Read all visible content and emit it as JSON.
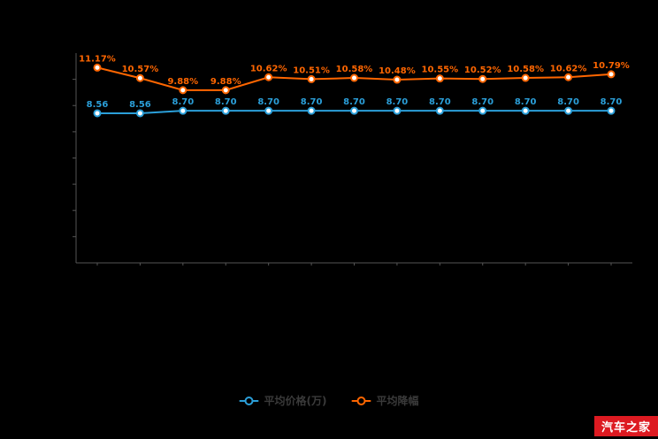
{
  "chart_data": {
    "type": "line",
    "title": "",
    "xlabel": "",
    "ylabel": "",
    "ylim": [
      0,
      12
    ],
    "grid": false,
    "legend_position": "bottom",
    "axis_color": "#555555",
    "legend_text_color": "#3a3a3a",
    "series": [
      {
        "name": "平均价格(万)",
        "color": "#2b9fd9",
        "values": [
          8.56,
          8.56,
          8.7,
          8.7,
          8.7,
          8.7,
          8.7,
          8.7,
          8.7,
          8.7,
          8.7,
          8.7,
          8.7
        ],
        "labels": [
          "8.56",
          "8.56",
          "8.70",
          "8.70",
          "8.70",
          "8.70",
          "8.70",
          "8.70",
          "8.70",
          "8.70",
          "8.70",
          "8.70",
          "8.70"
        ]
      },
      {
        "name": "平均降幅",
        "color": "#ff6600",
        "values": [
          11.17,
          10.57,
          9.88,
          9.88,
          10.62,
          10.51,
          10.58,
          10.48,
          10.55,
          10.52,
          10.58,
          10.62,
          10.79
        ],
        "labels": [
          "11.17%",
          "10.57%",
          "9.88%",
          "9.88%",
          "10.62%",
          "10.51%",
          "10.58%",
          "10.48%",
          "10.55%",
          "10.52%",
          "10.58%",
          "10.62%",
          "10.79%"
        ]
      }
    ]
  },
  "legend": {
    "items": [
      {
        "label": "平均价格(万)",
        "color": "#2b9fd9"
      },
      {
        "label": "平均降幅",
        "color": "#ff6600"
      }
    ]
  },
  "watermark": {
    "text": "汽车之家",
    "bg": "#dd1a21",
    "fg": "#ffffff"
  }
}
